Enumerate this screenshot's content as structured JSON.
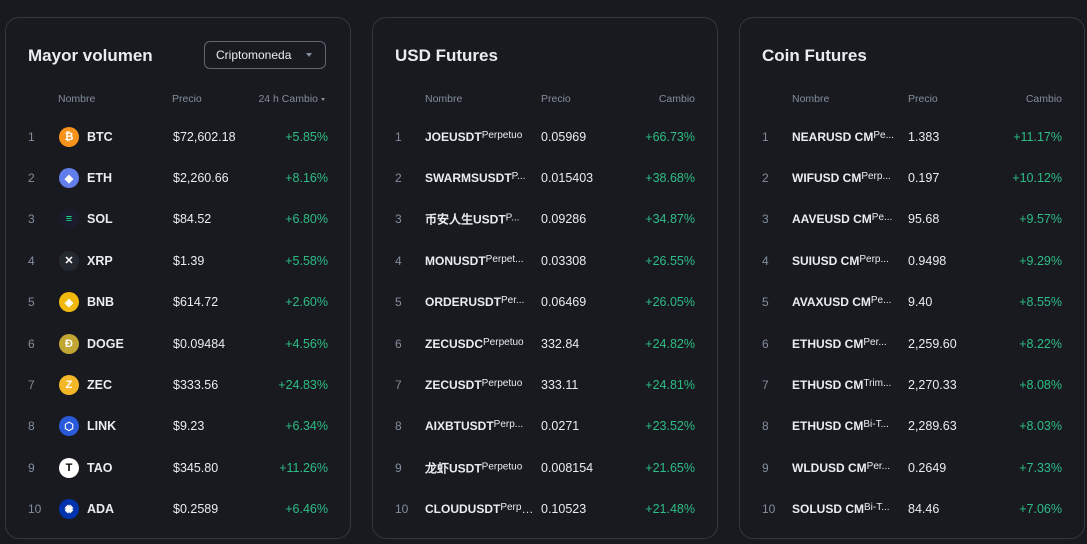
{
  "panel1": {
    "title": "Mayor volumen",
    "dropdown": "Criptomoneda",
    "headers": {
      "name": "Nombre",
      "price": "Precio",
      "change": "24 h Cambio"
    },
    "rows": [
      {
        "rank": "1",
        "symbol": "BTC",
        "price": "$72,602.18",
        "change": "+5.85%",
        "icon": "bitcoin-icon",
        "color": "#f7931a",
        "glyph": "₿"
      },
      {
        "rank": "2",
        "symbol": "ETH",
        "price": "$2,260.66",
        "change": "+8.16%",
        "icon": "ethereum-icon",
        "color": "#627eea",
        "glyph": "◆"
      },
      {
        "rank": "3",
        "symbol": "SOL",
        "price": "$84.52",
        "change": "+6.80%",
        "icon": "solana-icon",
        "color": "#1b1b2b",
        "glyph": "≡"
      },
      {
        "rank": "4",
        "symbol": "XRP",
        "price": "$1.39",
        "change": "+5.58%",
        "icon": "xrp-icon",
        "color": "#23292f",
        "glyph": "✕"
      },
      {
        "rank": "5",
        "symbol": "BNB",
        "price": "$614.72",
        "change": "+2.60%",
        "icon": "bnb-icon",
        "color": "#f0b90b",
        "glyph": "◈"
      },
      {
        "rank": "6",
        "symbol": "DOGE",
        "price": "$0.09484",
        "change": "+4.56%",
        "icon": "dogecoin-icon",
        "color": "#c2a633",
        "glyph": "Ð"
      },
      {
        "rank": "7",
        "symbol": "ZEC",
        "price": "$333.56",
        "change": "+24.83%",
        "icon": "zcash-icon",
        "color": "#f4b728",
        "glyph": "Z"
      },
      {
        "rank": "8",
        "symbol": "LINK",
        "price": "$9.23",
        "change": "+6.34%",
        "icon": "chainlink-icon",
        "color": "#2a5ada",
        "glyph": "⬡"
      },
      {
        "rank": "9",
        "symbol": "TAO",
        "price": "$345.80",
        "change": "+11.26%",
        "icon": "bittensor-icon",
        "color": "#ffffff",
        "glyph": "T"
      },
      {
        "rank": "10",
        "symbol": "ADA",
        "price": "$0.2589",
        "change": "+6.46%",
        "icon": "cardano-icon",
        "color": "#0033ad",
        "glyph": "✺"
      }
    ]
  },
  "panel2": {
    "title": "USD Futures",
    "headers": {
      "name": "Nombre",
      "price": "Precio",
      "change": "Cambio"
    },
    "rows": [
      {
        "rank": "1",
        "symbol": "JOEUSDT",
        "kind": "Perpetuo",
        "price": "0.05969",
        "change": "+66.73%"
      },
      {
        "rank": "2",
        "symbol": "SWARMSUSDT",
        "kind": "P...",
        "price": "0.015403",
        "change": "+38.68%"
      },
      {
        "rank": "3",
        "symbol": "币安人生USDT",
        "kind": "P...",
        "price": "0.09286",
        "change": "+34.87%"
      },
      {
        "rank": "4",
        "symbol": "MONUSDT",
        "kind": "Perpet...",
        "price": "0.03308",
        "change": "+26.55%"
      },
      {
        "rank": "5",
        "symbol": "ORDERUSDT",
        "kind": "Per...",
        "price": "0.06469",
        "change": "+26.05%"
      },
      {
        "rank": "6",
        "symbol": "ZECUSDC",
        "kind": "Perpetuo",
        "price": "332.84",
        "change": "+24.82%"
      },
      {
        "rank": "7",
        "symbol": "ZECUSDT",
        "kind": "Perpetuo",
        "price": "333.11",
        "change": "+24.81%"
      },
      {
        "rank": "8",
        "symbol": "AIXBTUSDT",
        "kind": "Perp...",
        "price": "0.0271",
        "change": "+23.52%"
      },
      {
        "rank": "9",
        "symbol": "龙虾USDT",
        "kind": "Perpetuo",
        "price": "0.008154",
        "change": "+21.65%"
      },
      {
        "rank": "10",
        "symbol": "CLOUDUSDT",
        "kind": "Perpetuo",
        "price": "0.10523",
        "change": "+21.48%"
      }
    ]
  },
  "panel3": {
    "title": "Coin Futures",
    "headers": {
      "name": "Nombre",
      "price": "Precio",
      "change": "Cambio"
    },
    "rows": [
      {
        "rank": "1",
        "symbol": "NEARUSD CM",
        "kind": "Pe...",
        "price": "1.383",
        "change": "+11.17%"
      },
      {
        "rank": "2",
        "symbol": "WIFUSD CM",
        "kind": "Perp...",
        "price": "0.197",
        "change": "+10.12%"
      },
      {
        "rank": "3",
        "symbol": "AAVEUSD CM",
        "kind": "Pe...",
        "price": "95.68",
        "change": "+9.57%"
      },
      {
        "rank": "4",
        "symbol": "SUIUSD CM",
        "kind": "Perp...",
        "price": "0.9498",
        "change": "+9.29%"
      },
      {
        "rank": "5",
        "symbol": "AVAXUSD CM",
        "kind": "Pe...",
        "price": "9.40",
        "change": "+8.55%"
      },
      {
        "rank": "6",
        "symbol": "ETHUSD CM",
        "kind": "Per...",
        "price": "2,259.60",
        "change": "+8.22%"
      },
      {
        "rank": "7",
        "symbol": "ETHUSD CM",
        "kind": "Trim...",
        "price": "2,270.33",
        "change": "+8.08%"
      },
      {
        "rank": "8",
        "symbol": "ETHUSD CM",
        "kind": "Bi-T...",
        "price": "2,289.63",
        "change": "+8.03%"
      },
      {
        "rank": "9",
        "symbol": "WLDUSD CM",
        "kind": "Per...",
        "price": "0.2649",
        "change": "+7.33%"
      },
      {
        "rank": "10",
        "symbol": "SOLUSD CM",
        "kind": "Bi-T...",
        "price": "84.46",
        "change": "+7.06%"
      }
    ]
  }
}
